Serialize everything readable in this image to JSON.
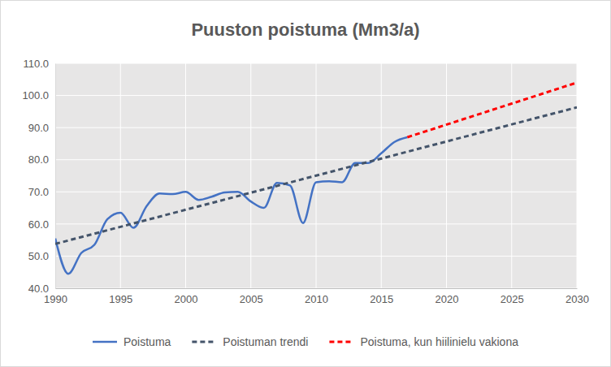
{
  "chart_data": {
    "type": "line",
    "title": "Puuston poistuma (Mm3/a)",
    "xlim": [
      1990,
      2030
    ],
    "xticks": [
      1990,
      1995,
      2000,
      2005,
      2010,
      2015,
      2020,
      2025,
      2030
    ],
    "ylim": [
      40,
      110
    ],
    "yticks": [
      {
        "value": 40,
        "label": "40.0"
      },
      {
        "value": 50,
        "label": "50.0"
      },
      {
        "value": 60,
        "label": "60.0"
      },
      {
        "value": 70,
        "label": "70.0"
      },
      {
        "value": 80,
        "label": "80.0"
      },
      {
        "value": 90,
        "label": "90.0"
      },
      {
        "value": 100,
        "label": "100.0"
      },
      {
        "value": 110,
        "label": "110.0"
      }
    ],
    "grid": true,
    "legend": "bottom",
    "series": [
      {
        "name": "Poistuma",
        "color": "#4472c4",
        "line_style": "solid",
        "x": [
          1990,
          1991,
          1992,
          1993,
          1994,
          1995,
          1996,
          1997,
          1998,
          1999,
          2000,
          2001,
          2002,
          2003,
          2004,
          2005,
          2006,
          2007,
          2008,
          2009,
          2010,
          2011,
          2012,
          2013,
          2014,
          2015,
          2016,
          2017
        ],
        "values": [
          55.5,
          44.5,
          51.0,
          53.5,
          61.5,
          63.5,
          58.8,
          65.5,
          69.5,
          69.3,
          70.0,
          67.5,
          68.5,
          69.8,
          70.0,
          67.0,
          65.0,
          72.8,
          72.0,
          60.3,
          73.0,
          73.3,
          73.0,
          79.0,
          79.0,
          82.0,
          85.5,
          87.0
        ]
      },
      {
        "name": "Poistuman trendi",
        "color": "#44546a",
        "line_style": "dashed",
        "x": [
          1990,
          2030
        ],
        "values": [
          53.8,
          96.3
        ]
      },
      {
        "name": "Poistuma, kun hiilinielu vakiona",
        "color": "#ff0000",
        "line_style": "dashed",
        "x": [
          2017,
          2030
        ],
        "values": [
          87.0,
          104.0
        ]
      }
    ]
  }
}
